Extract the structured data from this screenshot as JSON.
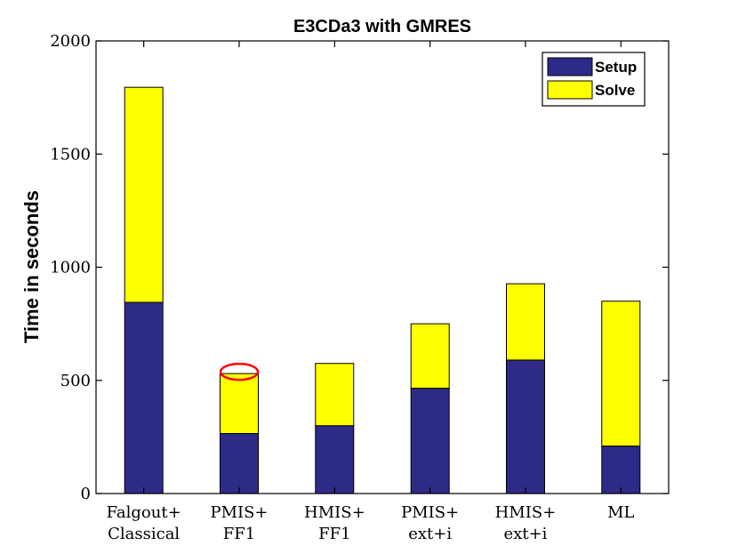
{
  "chart_data": {
    "type": "bar",
    "stacked": true,
    "title": "E3CDa3 with GMRES",
    "xlabel": "",
    "ylabel": "Time in seconds",
    "ylim": [
      0,
      2000
    ],
    "yticks": [
      0,
      500,
      1000,
      1500,
      2000
    ],
    "categories": [
      [
        "Falgout+",
        "Classical"
      ],
      [
        "PMIS+",
        "FF1"
      ],
      [
        "HMIS+",
        "FF1"
      ],
      [
        "PMIS+",
        "ext+i"
      ],
      [
        "HMIS+",
        "ext+i"
      ],
      [
        "ML"
      ]
    ],
    "series": [
      {
        "name": "Setup",
        "color": "#2e2a87",
        "values": [
          845,
          265,
          300,
          465,
          590,
          210
        ]
      },
      {
        "name": "Solve",
        "color": "#ffff00",
        "values": [
          950,
          265,
          275,
          285,
          337,
          640
        ]
      }
    ],
    "legend_position": "top-right",
    "grid": false,
    "annotation": {
      "type": "ellipse",
      "color": "#ff0000",
      "category_index": 1
    }
  }
}
